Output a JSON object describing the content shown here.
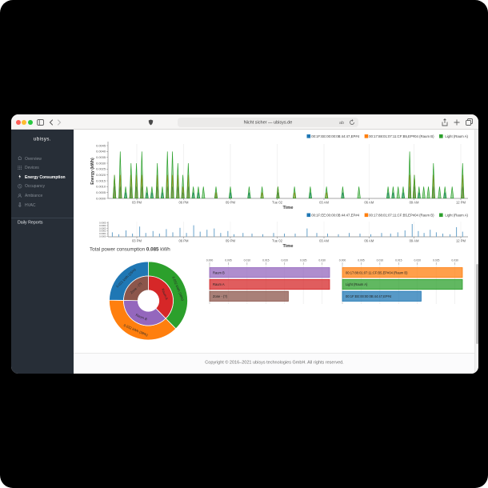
{
  "browser": {
    "address": "Nicht sicher — ubisys.de",
    "traffic_colors": [
      "#ff5f57",
      "#febc2e",
      "#28c840"
    ]
  },
  "sidebar": {
    "logo": "ubisys.",
    "items": [
      {
        "label": "Overview",
        "icon": "home-icon",
        "active": false
      },
      {
        "label": "Devices",
        "icon": "grid-icon",
        "active": false
      },
      {
        "label": "Energy Consumption",
        "icon": "energy-icon",
        "active": true
      },
      {
        "label": "Occupancy",
        "icon": "clock-icon",
        "active": false
      },
      {
        "label": "Ambiance",
        "icon": "person-icon",
        "active": false
      },
      {
        "label": "HVAC",
        "icon": "thermometer-icon",
        "active": false
      }
    ],
    "reports_label": "Daily Reports"
  },
  "summary": {
    "label": "Total power consumption",
    "value": "0.085",
    "unit": "kWh"
  },
  "footer": {
    "text": "Copyright © 2016–2021 ubisys technologies GmbH. All rights reserved."
  },
  "chart_data": [
    {
      "id": "energy-time-main",
      "type": "line",
      "xlabel": "Time",
      "ylabel": "Energy (kWh)",
      "ylim": [
        0,
        0.0045
      ],
      "yticks": [
        "0.0000",
        "0.0005",
        "0.0010",
        "0.0015",
        "0.0020",
        "0.0025",
        "0.0030",
        "0.0035",
        "0.0040",
        "0.0045"
      ],
      "xticks": [
        [
          0.08,
          "03 PM"
        ],
        [
          0.21,
          "06 PM"
        ],
        [
          0.34,
          "09 PM"
        ],
        [
          0.47,
          "Tue 02"
        ],
        [
          0.6,
          "03 AM"
        ],
        [
          0.725,
          "06 AM"
        ],
        [
          0.85,
          "09 AM"
        ],
        [
          0.98,
          "12 PM"
        ]
      ],
      "legend": [
        {
          "label": "00:1F:EE:00:00:0B:44:47,EP#4",
          "color": "#1f77b4"
        },
        {
          "label": "00:17:88:01:07:11:CF:B5,EP#04 (Raum B)",
          "color": "#ff7f0e"
        },
        {
          "label": "Light (Raum A)",
          "color": "#2ca02c"
        }
      ],
      "series": [
        {
          "name": "00:1F:EE:00:00:0B:44:47,EP#4",
          "color": "#1f77b4",
          "spikes": [
            [
              0.018,
              0.001
            ],
            [
              0.034,
              0.001
            ],
            [
              0.049,
              0.0005
            ],
            [
              0.064,
              0.001
            ],
            [
              0.079,
              0.001
            ],
            [
              0.094,
              0.001
            ],
            [
              0.108,
              0.0005
            ],
            [
              0.122,
              0.0005
            ],
            [
              0.137,
              0.001
            ],
            [
              0.151,
              0.0005
            ],
            [
              0.165,
              0.001
            ],
            [
              0.179,
              0.001
            ],
            [
              0.194,
              0.001
            ],
            [
              0.208,
              0.0005
            ],
            [
              0.223,
              0.001
            ],
            [
              0.237,
              0.0005
            ],
            [
              0.251,
              0.0005
            ],
            [
              0.3,
              0.0005
            ],
            [
              0.34,
              0.0005
            ],
            [
              0.392,
              0.0005
            ],
            [
              0.472,
              0.0005
            ],
            [
              0.562,
              0.0005
            ],
            [
              0.652,
              0.0005
            ],
            [
              0.778,
              0.0005
            ],
            [
              0.792,
              0.0005
            ],
            [
              0.82,
              0.0005
            ],
            [
              0.838,
              0.001
            ],
            [
              0.851,
              0.001
            ],
            [
              0.864,
              0.0005
            ],
            [
              0.904,
              0.001
            ],
            [
              0.936,
              0.0005
            ],
            [
              0.985,
              0.001
            ]
          ]
        },
        {
          "name": "00:17:88:01:07:11:CF:B5,EP#04 (Raum B)",
          "color": "#ff7f0e",
          "spikes": [
            [
              0.018,
              0.002
            ],
            [
              0.034,
              0.002
            ],
            [
              0.064,
              0.002
            ],
            [
              0.079,
              0.002
            ],
            [
              0.094,
              0.002
            ],
            [
              0.137,
              0.002
            ],
            [
              0.165,
              0.002
            ],
            [
              0.179,
              0.002
            ],
            [
              0.194,
              0.002
            ],
            [
              0.208,
              0.001
            ],
            [
              0.223,
              0.002
            ],
            [
              0.3,
              0.0005
            ],
            [
              0.428,
              0.0005
            ],
            [
              0.472,
              0.001
            ],
            [
              0.518,
              0.0005
            ],
            [
              0.607,
              0.0005
            ],
            [
              0.838,
              0.002
            ],
            [
              0.851,
              0.002
            ],
            [
              0.904,
              0.002
            ],
            [
              0.985,
              0.002
            ]
          ]
        },
        {
          "name": "Light (Raum A)",
          "color": "#2ca02c",
          "spikes": [
            [
              0.018,
              0.002
            ],
            [
              0.034,
              0.004
            ],
            [
              0.049,
              0.001
            ],
            [
              0.064,
              0.003
            ],
            [
              0.079,
              0.003
            ],
            [
              0.094,
              0.004
            ],
            [
              0.108,
              0.001
            ],
            [
              0.122,
              0.001
            ],
            [
              0.137,
              0.003
            ],
            [
              0.151,
              0.001
            ],
            [
              0.165,
              0.004
            ],
            [
              0.179,
              0.004
            ],
            [
              0.194,
              0.003
            ],
            [
              0.208,
              0.002
            ],
            [
              0.223,
              0.003
            ],
            [
              0.237,
              0.001
            ],
            [
              0.251,
              0.001
            ],
            [
              0.265,
              0.001
            ],
            [
              0.3,
              0.001
            ],
            [
              0.34,
              0.001
            ],
            [
              0.392,
              0.001
            ],
            [
              0.428,
              0.001
            ],
            [
              0.472,
              0.001
            ],
            [
              0.518,
              0.001
            ],
            [
              0.562,
              0.001
            ],
            [
              0.607,
              0.001
            ],
            [
              0.652,
              0.001
            ],
            [
              0.697,
              0.001
            ],
            [
              0.778,
              0.001
            ],
            [
              0.792,
              0.001
            ],
            [
              0.806,
              0.001
            ],
            [
              0.82,
              0.001
            ],
            [
              0.838,
              0.004
            ],
            [
              0.851,
              0.002
            ],
            [
              0.864,
              0.001
            ],
            [
              0.877,
              0.001
            ],
            [
              0.89,
              0.001
            ],
            [
              0.904,
              0.003
            ],
            [
              0.921,
              0.001
            ],
            [
              0.936,
              0.001
            ],
            [
              0.956,
              0.001
            ],
            [
              0.985,
              0.003
            ]
          ]
        }
      ]
    },
    {
      "id": "energy-time-small",
      "type": "bar",
      "xlabel": "Time",
      "yticks": [
        "0.0005",
        "0.0004",
        "0.0003",
        "0.0002",
        "0.0001",
        "0.0000"
      ],
      "xticks": [
        [
          0.08,
          "03 PM"
        ],
        [
          0.21,
          "06 PM"
        ],
        [
          0.34,
          "09 PM"
        ],
        [
          0.47,
          "Tue 02"
        ],
        [
          0.6,
          "03 AM"
        ],
        [
          0.725,
          "06 AM"
        ],
        [
          0.85,
          "09 AM"
        ],
        [
          0.98,
          "12 PM"
        ]
      ],
      "legend": [
        {
          "label": "00:1F:EE:00:00:0B:44:47,EP#4",
          "color": "#1f77b4"
        },
        {
          "label": "00:17:88:01:07:11:CF:B5,EP#04 (Raum B)",
          "color": "#ff7f0e"
        },
        {
          "label": "Light (Raum A)",
          "color": "#2ca02c"
        }
      ],
      "series": [
        {
          "name": "00:1F:EE:00:00:0B:44:47,EP#4",
          "color": "#68a2ca",
          "bars": [
            [
              0.012,
              0.35
            ],
            [
              0.03,
              0.2
            ],
            [
              0.05,
              0.5
            ],
            [
              0.068,
              0.25
            ],
            [
              0.088,
              0.8
            ],
            [
              0.105,
              0.3
            ],
            [
              0.125,
              0.45
            ],
            [
              0.143,
              0.25
            ],
            [
              0.162,
              0.6
            ],
            [
              0.18,
              0.35
            ],
            [
              0.2,
              0.7
            ],
            [
              0.218,
              0.3
            ],
            [
              0.238,
              0.9
            ],
            [
              0.256,
              0.4
            ],
            [
              0.275,
              0.55
            ],
            [
              0.295,
              0.65
            ],
            [
              0.313,
              0.3
            ],
            [
              0.333,
              0.45
            ],
            [
              0.35,
              0.2
            ],
            [
              0.375,
              0.3
            ],
            [
              0.4,
              0.25
            ],
            [
              0.43,
              0.2
            ],
            [
              0.46,
              0.3
            ],
            [
              0.49,
              0.25
            ],
            [
              0.52,
              0.25
            ],
            [
              0.553,
              0.65
            ],
            [
              0.58,
              0.3
            ],
            [
              0.61,
              0.25
            ],
            [
              0.64,
              0.2
            ],
            [
              0.67,
              0.3
            ],
            [
              0.7,
              0.25
            ],
            [
              0.73,
              0.2
            ],
            [
              0.76,
              0.3
            ],
            [
              0.785,
              0.25
            ],
            [
              0.805,
              0.35
            ],
            [
              0.825,
              0.5
            ],
            [
              0.845,
              1.0
            ],
            [
              0.862,
              0.45
            ],
            [
              0.878,
              0.3
            ],
            [
              0.895,
              0.55
            ],
            [
              0.912,
              0.35
            ],
            [
              0.93,
              0.25
            ],
            [
              0.95,
              0.2
            ],
            [
              0.968,
              0.75
            ],
            [
              0.985,
              0.4
            ]
          ]
        }
      ]
    },
    {
      "id": "consumption-sunburst",
      "type": "pie",
      "total": 0.085,
      "inner": [
        {
          "label": "Raum A",
          "value": 0.032,
          "color": "#d62728"
        },
        {
          "label": "Raum B",
          "value": 0.032,
          "color": "#9467bd"
        },
        {
          "label": "Zone - (?)",
          "value": 0.021,
          "color": "#8c564b"
        }
      ],
      "outer": [
        {
          "label": "0.032 kWh (38%)",
          "value": 0.032,
          "color": "#2ca02c"
        },
        {
          "label": "0.032 kWh (38%)",
          "value": 0.032,
          "color": "#ff7f0e"
        },
        {
          "label": "0.021 kWh (25%)",
          "value": 0.021,
          "color": "#1f77b4"
        }
      ]
    },
    {
      "id": "consumption-by-room",
      "type": "bar",
      "xticks": [
        "0.000",
        "0.005",
        "0.010",
        "0.015",
        "0.020",
        "0.025",
        "0.030"
      ],
      "xmax": 0.032,
      "bars": [
        {
          "label": "Raum B",
          "value": 0.032,
          "color": "#9467bd"
        },
        {
          "label": "Raum A",
          "value": 0.032,
          "color": "#d62728"
        },
        {
          "label": "Zone - (?)",
          "value": 0.021,
          "color": "#8c564b"
        }
      ]
    },
    {
      "id": "consumption-by-device",
      "type": "bar",
      "xticks": [
        "0.000",
        "0.005",
        "0.010",
        "0.015",
        "0.020",
        "0.025",
        "0.030"
      ],
      "xmax": 0.032,
      "bars": [
        {
          "label": "00:17:88:01:07:11:CF:B5,EP#04 (Raum B)",
          "value": 0.032,
          "color": "#ff7f0e"
        },
        {
          "label": "Light (Raum A)",
          "value": 0.032,
          "color": "#2ca02c"
        },
        {
          "label": "00:1F:EE:00:00:0B:44:47,EP#4",
          "value": 0.021,
          "color": "#1f77b4"
        }
      ]
    }
  ]
}
